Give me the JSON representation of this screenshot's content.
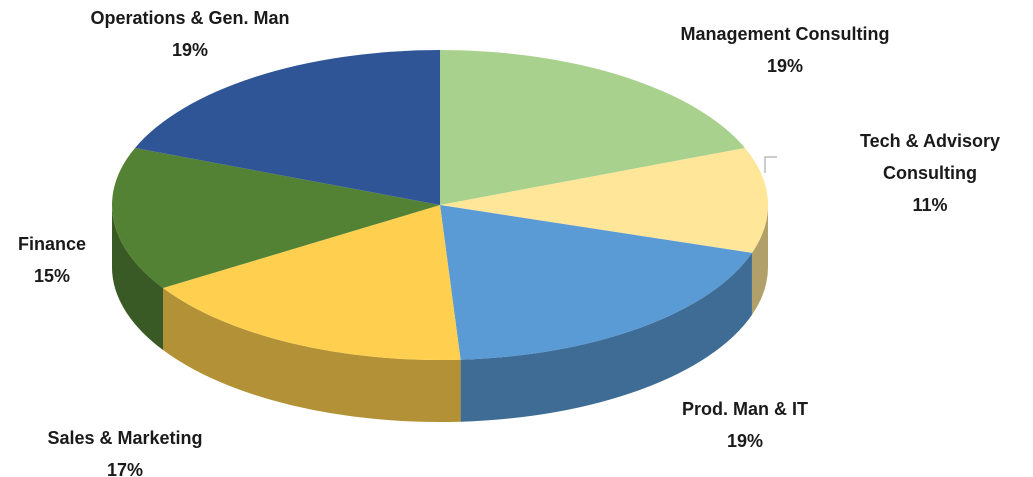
{
  "chart_data": {
    "type": "pie",
    "categories": [
      "Management Consulting",
      "Tech & Advisory Consulting",
      "Prod. Man & IT",
      "Sales & Marketing",
      "Finance",
      "Operations & Gen. Man"
    ],
    "values": [
      19,
      11,
      19,
      17,
      15,
      19
    ],
    "value_labels": [
      "19%",
      "11%",
      "19%",
      "17%",
      "15%",
      "19%"
    ],
    "colors": [
      "#a9d18e",
      "#ffe699",
      "#5b9bd5",
      "#ffd050",
      "#548235",
      "#2f5597"
    ]
  }
}
